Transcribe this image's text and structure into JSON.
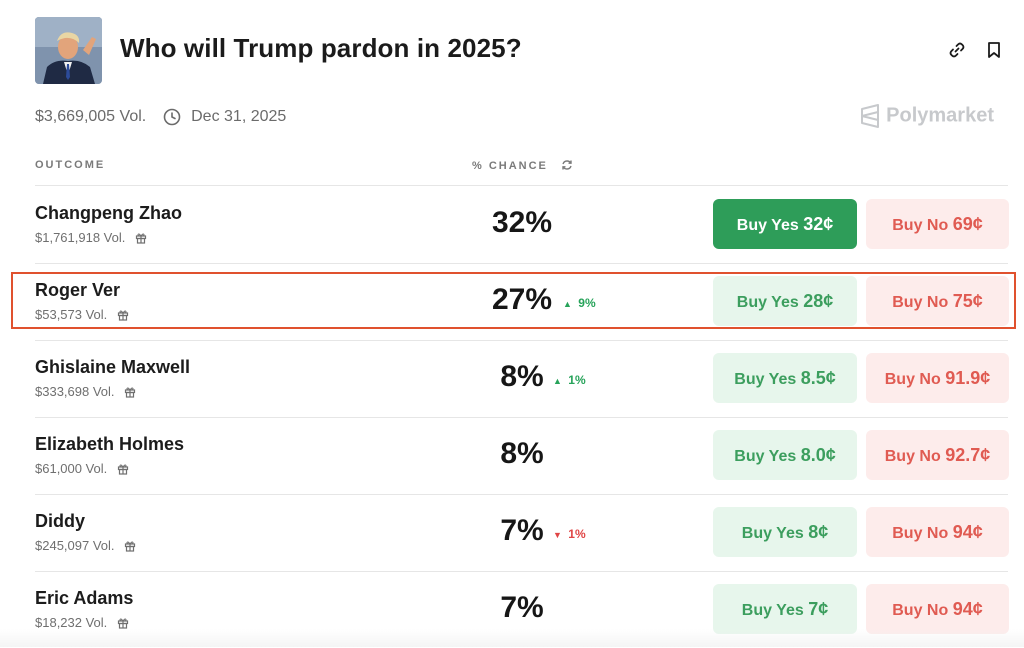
{
  "market": {
    "title": "Who will Trump pardon in 2025?",
    "volume": "$3,669,005 Vol.",
    "end_date": "Dec 31, 2025",
    "brand": "Polymarket"
  },
  "table": {
    "outcome_header": "OUTCOME",
    "chance_header": "% CHANCE",
    "rows": [
      {
        "name": "Changpeng Zhao",
        "volume": "$1,761,918 Vol.",
        "chance": "32%",
        "delta": "",
        "delta_dir": "",
        "yes_label": "Buy Yes",
        "yes_price": "32¢",
        "no_label": "Buy No",
        "no_price": "69¢"
      },
      {
        "name": "Roger Ver",
        "volume": "$53,573 Vol.",
        "chance": "27%",
        "delta": "9%",
        "delta_dir": "up",
        "yes_label": "Buy Yes",
        "yes_price": "28¢",
        "no_label": "Buy No",
        "no_price": "75¢"
      },
      {
        "name": "Ghislaine Maxwell",
        "volume": "$333,698 Vol.",
        "chance": "8%",
        "delta": "1%",
        "delta_dir": "up",
        "yes_label": "Buy Yes",
        "yes_price": "8.5¢",
        "no_label": "Buy No",
        "no_price": "91.9¢"
      },
      {
        "name": "Elizabeth Holmes",
        "volume": "$61,000 Vol.",
        "chance": "8%",
        "delta": "",
        "delta_dir": "",
        "yes_label": "Buy Yes",
        "yes_price": "8.0¢",
        "no_label": "Buy No",
        "no_price": "92.7¢"
      },
      {
        "name": "Diddy",
        "volume": "$245,097 Vol.",
        "chance": "7%",
        "delta": "1%",
        "delta_dir": "down",
        "yes_label": "Buy Yes",
        "yes_price": "8¢",
        "no_label": "Buy No",
        "no_price": "94¢"
      },
      {
        "name": "Eric Adams",
        "volume": "$18,232 Vol.",
        "chance": "7%",
        "delta": "",
        "delta_dir": "",
        "yes_label": "Buy Yes",
        "yes_price": "7¢",
        "no_label": "Buy No",
        "no_price": "94¢"
      }
    ]
  },
  "colors": {
    "yes_active": "#2e9d59",
    "yes_bg": "#e7f6ec",
    "no_bg": "#fdeceb",
    "highlight": "#e0512e"
  }
}
